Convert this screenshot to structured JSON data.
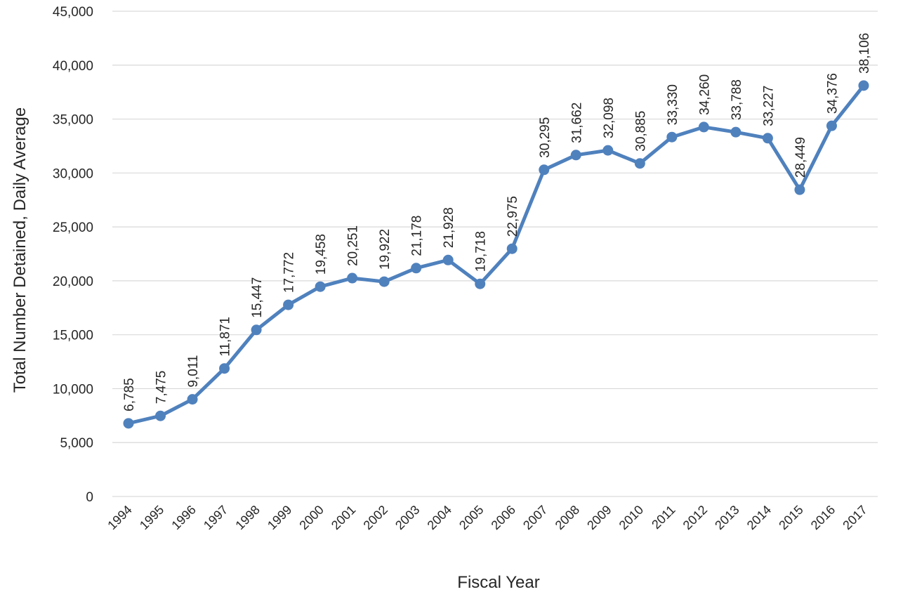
{
  "chart_data": {
    "type": "line",
    "title": "",
    "xlabel": "Fiscal Year",
    "ylabel": "Total Number Detained, Daily Average",
    "ylim": [
      0,
      45000
    ],
    "yticks": [
      "0",
      "5,000",
      "10,000",
      "15,000",
      "20,000",
      "25,000",
      "30,000",
      "35,000",
      "40,000",
      "45,000"
    ],
    "grid": true,
    "legend": "none",
    "color": "#4f81bd",
    "x": [
      "1994",
      "1995",
      "1996",
      "1997",
      "1998",
      "1999",
      "2000",
      "2001",
      "2002",
      "2003",
      "2004",
      "2005",
      "2006",
      "2007",
      "2008",
      "2009",
      "2010",
      "2011",
      "2012",
      "2013",
      "2014",
      "2015",
      "2016",
      "2017"
    ],
    "values": [
      6785,
      7475,
      9011,
      11871,
      15447,
      17772,
      19458,
      20251,
      19922,
      21178,
      21928,
      19718,
      22975,
      30295,
      31662,
      32098,
      30885,
      33330,
      34260,
      33788,
      33227,
      28449,
      34376,
      38106
    ],
    "data_labels": [
      "6,785",
      "7,475",
      "9,011",
      "11,871",
      "15,447",
      "17,772",
      "19,458",
      "20,251",
      "19,922",
      "21,178",
      "21,928",
      "19,718",
      "22,975",
      "30,295",
      "31,662",
      "32,098",
      "30,885",
      "33,330",
      "34,260",
      "33,788",
      "33,227",
      "28,449",
      "34,376",
      "38,106"
    ]
  }
}
